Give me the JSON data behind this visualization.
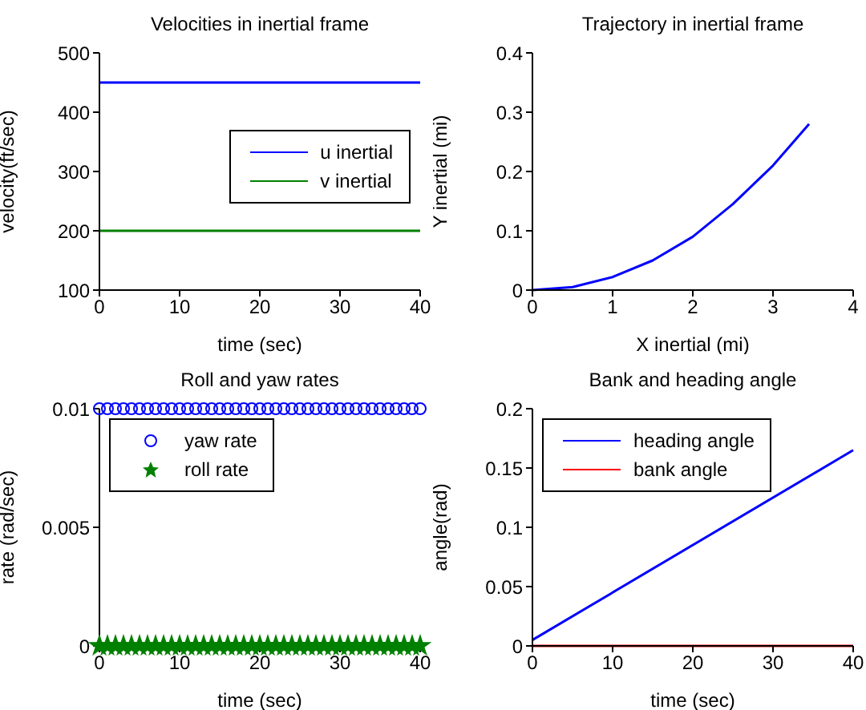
{
  "chart_data": [
    {
      "type": "line",
      "title": "Velocities in inertial frame",
      "xlabel": "time (sec)",
      "ylabel": "velocity(ft/sec)",
      "xlim": [
        0,
        40
      ],
      "xticks": [
        0,
        10,
        20,
        30,
        40
      ],
      "ylim": [
        100,
        500
      ],
      "yticks": [
        100,
        200,
        300,
        400,
        500
      ],
      "legend": "right",
      "grid": false,
      "x": [
        0,
        40
      ],
      "series": [
        {
          "name": "u inertial",
          "color": "#0000ff",
          "values": [
            450,
            450
          ]
        },
        {
          "name": "v inertial",
          "color": "#008000",
          "values": [
            200,
            200
          ]
        }
      ]
    },
    {
      "type": "line",
      "title": "Trajectory in inertial frame",
      "xlabel": "X inertial (mi)",
      "ylabel": "Y inertial (mi)",
      "xlim": [
        0,
        4
      ],
      "xticks": [
        0,
        1,
        2,
        3,
        4
      ],
      "ylim": [
        0,
        0.4
      ],
      "yticks": [
        0,
        0.1,
        0.2,
        0.3,
        0.4
      ],
      "grid": false,
      "x": [
        0,
        0.5,
        1,
        1.5,
        2,
        2.5,
        3,
        3.45
      ],
      "series": [
        {
          "color": "#0000ff",
          "values": [
            0,
            0.005,
            0.022,
            0.05,
            0.09,
            0.145,
            0.21,
            0.28
          ]
        }
      ]
    },
    {
      "type": "scatter",
      "title": "Roll and yaw rates",
      "xlabel": "time (sec)",
      "ylabel": "rate (rad/sec)",
      "xlim": [
        0,
        40
      ],
      "xticks": [
        0,
        10,
        20,
        30,
        40
      ],
      "ylim": [
        0,
        0.01
      ],
      "yticks": [
        0,
        0.005,
        0.01
      ],
      "legend": "top left",
      "grid": false,
      "x": [
        0,
        1,
        2,
        3,
        4,
        5,
        6,
        7,
        8,
        9,
        10,
        11,
        12,
        13,
        14,
        15,
        16,
        17,
        18,
        19,
        20,
        21,
        22,
        23,
        24,
        25,
        26,
        27,
        28,
        29,
        30,
        31,
        32,
        33,
        34,
        35,
        36,
        37,
        38,
        39,
        40
      ],
      "series": [
        {
          "name": "yaw rate",
          "color": "#0000ff",
          "marker": "circle",
          "values": [
            0.01,
            0.01,
            0.01,
            0.01,
            0.01,
            0.01,
            0.01,
            0.01,
            0.01,
            0.01,
            0.01,
            0.01,
            0.01,
            0.01,
            0.01,
            0.01,
            0.01,
            0.01,
            0.01,
            0.01,
            0.01,
            0.01,
            0.01,
            0.01,
            0.01,
            0.01,
            0.01,
            0.01,
            0.01,
            0.01,
            0.01,
            0.01,
            0.01,
            0.01,
            0.01,
            0.01,
            0.01,
            0.01,
            0.01,
            0.01,
            0.01
          ]
        },
        {
          "name": "roll rate",
          "color": "#008000",
          "marker": "star",
          "values": [
            0,
            0,
            0,
            0,
            0,
            0,
            0,
            0,
            0,
            0,
            0,
            0,
            0,
            0,
            0,
            0,
            0,
            0,
            0,
            0,
            0,
            0,
            0,
            0,
            0,
            0,
            0,
            0,
            0,
            0,
            0,
            0,
            0,
            0,
            0,
            0,
            0,
            0,
            0,
            0,
            0
          ]
        }
      ]
    },
    {
      "type": "line",
      "title": "Bank and heading angle",
      "xlabel": "time (sec)",
      "ylabel": "angle(rad)",
      "xlim": [
        0,
        40
      ],
      "xticks": [
        0,
        10,
        20,
        30,
        40
      ],
      "ylim": [
        0,
        0.2
      ],
      "yticks": [
        0,
        0.05,
        0.1,
        0.15,
        0.2
      ],
      "legend": "top left",
      "grid": false,
      "x": [
        0,
        40
      ],
      "series": [
        {
          "name": "heading angle",
          "color": "#0000ff",
          "values": [
            0.005,
            0.165
          ]
        },
        {
          "name": "bank angle",
          "color": "#ff0000",
          "values": [
            0,
            0
          ]
        }
      ]
    }
  ]
}
